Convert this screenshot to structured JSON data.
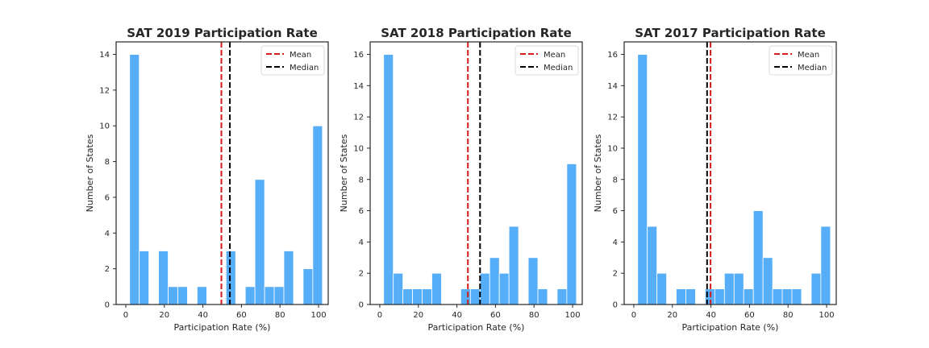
{
  "colors": {
    "bar": "#56aef8",
    "mean": "#d7191c",
    "median": "#000000"
  },
  "chart_data": [
    {
      "type": "bar",
      "title": "SAT 2019 Participation Rate",
      "xlabel": "Participation Rate (%)",
      "ylabel": "Number of States",
      "xlim": [
        -5,
        105
      ],
      "ylim": [
        0,
        14.7
      ],
      "xticks": [
        0,
        20,
        40,
        60,
        80,
        100
      ],
      "yticks": [
        0,
        2,
        4,
        6,
        8,
        10,
        12,
        14
      ],
      "bin_edges": [
        2,
        7,
        12,
        17,
        22,
        27,
        32,
        37,
        42,
        47,
        52,
        57,
        62,
        67,
        72,
        77,
        82,
        87,
        92,
        97,
        102
      ],
      "values": [
        14,
        3,
        0,
        3,
        1,
        1,
        0,
        1,
        0,
        0,
        3,
        0,
        1,
        7,
        1,
        1,
        3,
        0,
        2,
        10
      ],
      "mean": 49.6,
      "median": 54,
      "legend": [
        "Mean",
        "Median"
      ],
      "legend_position": "upper right"
    },
    {
      "type": "bar",
      "title": "SAT 2018 Participation Rate",
      "xlabel": "Participation Rate (%)",
      "ylabel": "Number of States",
      "xlim": [
        -5,
        105
      ],
      "ylim": [
        0,
        16.8
      ],
      "xticks": [
        0,
        20,
        40,
        60,
        80,
        100
      ],
      "yticks": [
        0,
        2,
        4,
        6,
        8,
        10,
        12,
        14,
        16
      ],
      "bin_edges": [
        2,
        7,
        12,
        17,
        22,
        27,
        32,
        37,
        42,
        47,
        52,
        57,
        62,
        67,
        72,
        77,
        82,
        87,
        92,
        97,
        102
      ],
      "values": [
        16,
        2,
        1,
        1,
        1,
        2,
        0,
        0,
        1,
        1,
        2,
        3,
        2,
        5,
        0,
        3,
        1,
        0,
        1,
        9
      ],
      "mean": 45.7,
      "median": 52,
      "legend": [
        "Mean",
        "Median"
      ],
      "legend_position": "upper right"
    },
    {
      "type": "bar",
      "title": "SAT 2017 Participation Rate",
      "xlabel": "Participation Rate (%)",
      "ylabel": "Number of States",
      "xlim": [
        -5,
        105
      ],
      "ylim": [
        0,
        16.8
      ],
      "xticks": [
        0,
        20,
        40,
        60,
        80,
        100
      ],
      "yticks": [
        0,
        2,
        4,
        6,
        8,
        10,
        12,
        14,
        16
      ],
      "bin_edges": [
        2,
        7,
        12,
        17,
        22,
        27,
        32,
        37,
        42,
        47,
        52,
        57,
        62,
        67,
        72,
        77,
        82,
        87,
        92,
        97,
        102
      ],
      "values": [
        16,
        5,
        2,
        0,
        1,
        1,
        0,
        1,
        1,
        2,
        2,
        1,
        6,
        3,
        1,
        1,
        1,
        0,
        2,
        5
      ],
      "mean": 39.8,
      "median": 38,
      "legend": [
        "Mean",
        "Median"
      ],
      "legend_position": "upper right"
    }
  ]
}
